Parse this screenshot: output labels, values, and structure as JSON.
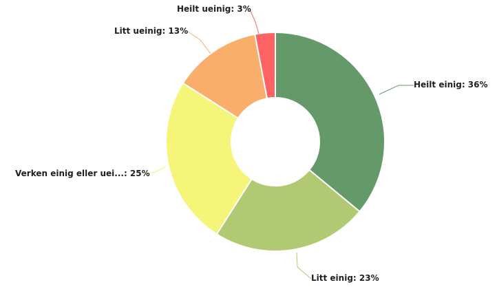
{
  "chart_data": {
    "type": "pie",
    "style": "donut",
    "slices": [
      {
        "label": "Heilt einig: 36%",
        "name": "Heilt einig",
        "value": 36,
        "color": "#64996a"
      },
      {
        "label": "Litt einig: 23%",
        "name": "Litt einig",
        "value": 23,
        "color": "#b0c972"
      },
      {
        "label": "Verken einig eller uei...: 25%",
        "name": "Verken einig eller uei...",
        "value": 25,
        "color": "#f5f57a"
      },
      {
        "label": "Litt ueinig: 13%",
        "name": "Litt ueinig",
        "value": 13,
        "color": "#f9ae6c"
      },
      {
        "label": "Heilt ueinig: 3%",
        "name": "Heilt ueinig",
        "value": 3,
        "color": "#ff6464"
      }
    ]
  }
}
